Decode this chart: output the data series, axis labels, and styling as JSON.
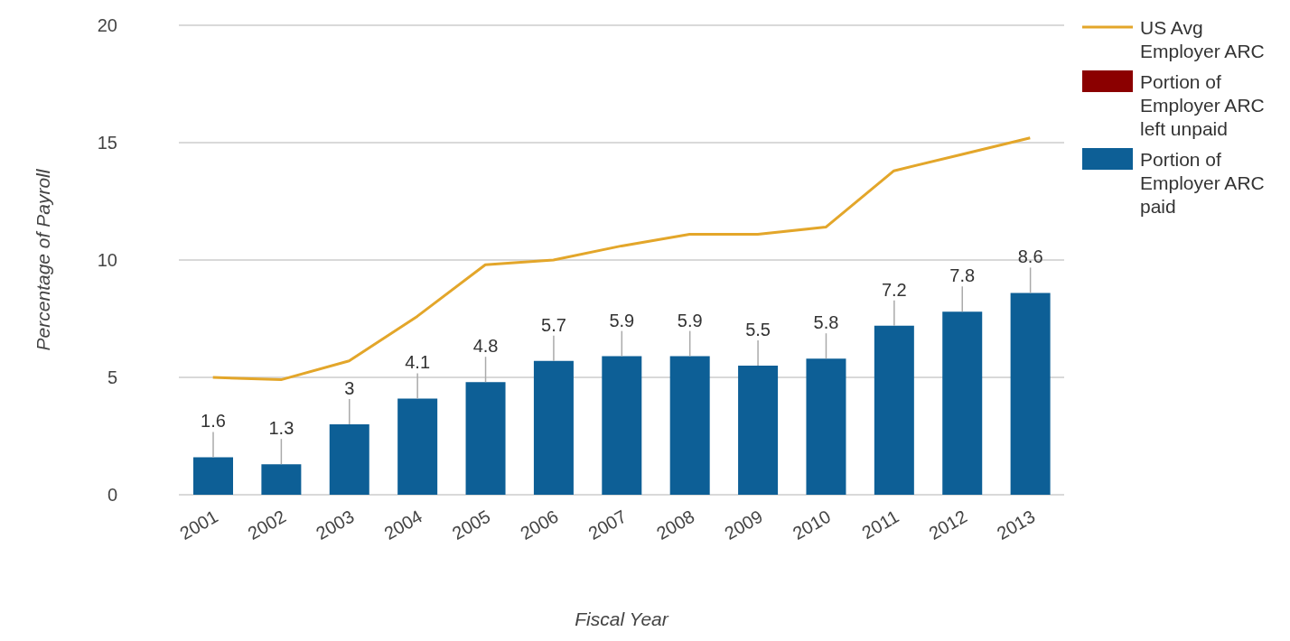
{
  "chart_data": {
    "type": "bar",
    "xlabel": "Fiscal Year",
    "ylabel": "Percentage of Payroll",
    "categories": [
      "2001",
      "2002",
      "2003",
      "2004",
      "2005",
      "2006",
      "2007",
      "2008",
      "2009",
      "2010",
      "2011",
      "2012",
      "2013"
    ],
    "series": [
      {
        "name": "US Avg Employer ARC",
        "type": "line",
        "color": "#e3a62a",
        "values": [
          5.0,
          4.9,
          5.7,
          7.6,
          9.8,
          10.0,
          10.6,
          11.1,
          11.1,
          11.4,
          13.8,
          14.5,
          15.2
        ]
      },
      {
        "name": "Portion of Employer ARC paid",
        "color": "#0d5f96",
        "values": [
          1.6,
          1.3,
          3,
          4.1,
          4.8,
          5.7,
          5.9,
          5.9,
          5.5,
          5.8,
          7.2,
          7.8,
          8.6
        ],
        "value_labels": [
          "1.6",
          "1.3",
          "3",
          "4.1",
          "4.8",
          "5.7",
          "5.9",
          "5.9",
          "5.5",
          "5.8",
          "7.2",
          "7.8",
          "8.6"
        ]
      },
      {
        "name": "Portion of Employer ARC left unpaid",
        "color": "#8b0000",
        "values": [
          null,
          null,
          null,
          null,
          null,
          null,
          null,
          null,
          null,
          null,
          null,
          null,
          null
        ]
      }
    ],
    "stacked": true,
    "ylim": [
      0,
      20
    ],
    "yticks": [
      0,
      5,
      10,
      15,
      20
    ],
    "grid": "y",
    "legend": "top right",
    "marker": "none",
    "line_style": "solid"
  }
}
